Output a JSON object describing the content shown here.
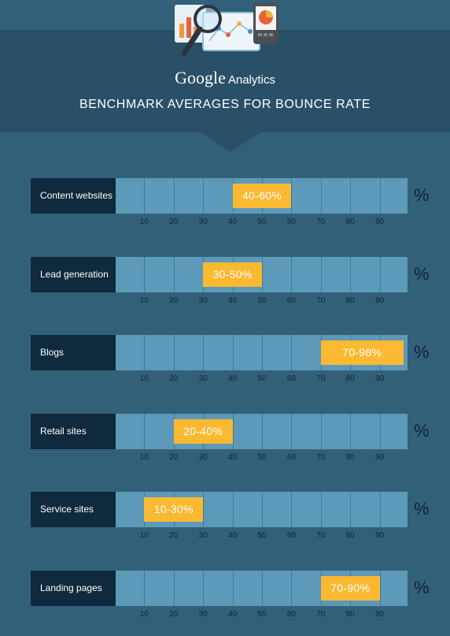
{
  "header": {
    "brand_google": "Google",
    "brand_analytics": "Analytics",
    "title": "BENCHMARK AVERAGES FOR BOUNCE RATE",
    "illustration_icons": [
      "magnifier-icon",
      "line-chart-icon",
      "bar-chart-icon",
      "pie-chart-icon"
    ]
  },
  "colors": {
    "background": "#336079",
    "header": "#2a5068",
    "label_box": "#0f2a3c",
    "track": "#5d9ab9",
    "range": "#fbb931",
    "tick_text": "#0f2436"
  },
  "chart_data": {
    "type": "bar",
    "title": "BENCHMARK AVERAGES FOR BOUNCE RATE",
    "unit": "%",
    "xlim": [
      0,
      100
    ],
    "ticks": [
      10,
      20,
      30,
      40,
      50,
      60,
      70,
      80,
      90
    ],
    "categories": [
      "Content websites",
      "Lead generation",
      "Blogs",
      "Retail sites",
      "Service sites",
      "Landing pages"
    ],
    "ranges": [
      {
        "category": "Content websites",
        "low": 40,
        "high": 60,
        "label": "40-60%"
      },
      {
        "category": "Lead generation",
        "low": 30,
        "high": 50,
        "label": "30-50%"
      },
      {
        "category": "Blogs",
        "low": 70,
        "high": 98,
        "label": "70-98%"
      },
      {
        "category": "Retail sites",
        "low": 20,
        "high": 40,
        "label": "20-40%"
      },
      {
        "category": "Service sites",
        "low": 10,
        "high": 30,
        "label": "10-30%"
      },
      {
        "category": "Landing pages",
        "low": 70,
        "high": 90,
        "label": "70-90%"
      }
    ]
  }
}
